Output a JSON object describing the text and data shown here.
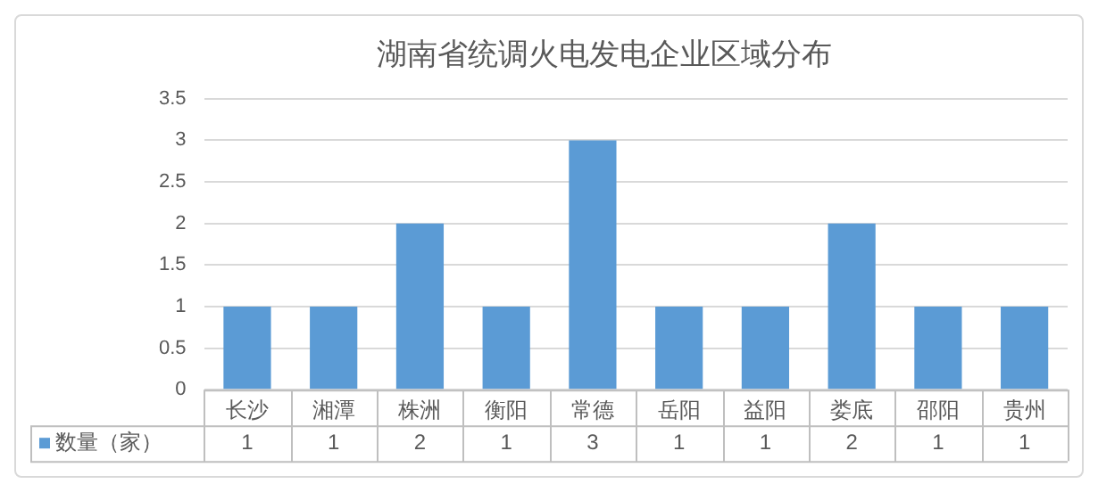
{
  "chart_data": {
    "type": "bar",
    "title": "湖南省统调火电发电企业区域分布",
    "categories": [
      "长沙",
      "湘潭",
      "株洲",
      "衡阳",
      "常德",
      "岳阳",
      "益阳",
      "娄底",
      "邵阳",
      "贵州"
    ],
    "series": [
      {
        "name": "数量（家）",
        "color": "#5b9bd5",
        "values": [
          1,
          1,
          2,
          1,
          3,
          1,
          1,
          2,
          1,
          1
        ]
      }
    ],
    "ylim": [
      0,
      3.5
    ],
    "yticks": [
      0,
      0.5,
      1,
      1.5,
      2,
      2.5,
      3,
      3.5
    ],
    "grid": "y",
    "legend": "bottom",
    "data_labels": true
  }
}
